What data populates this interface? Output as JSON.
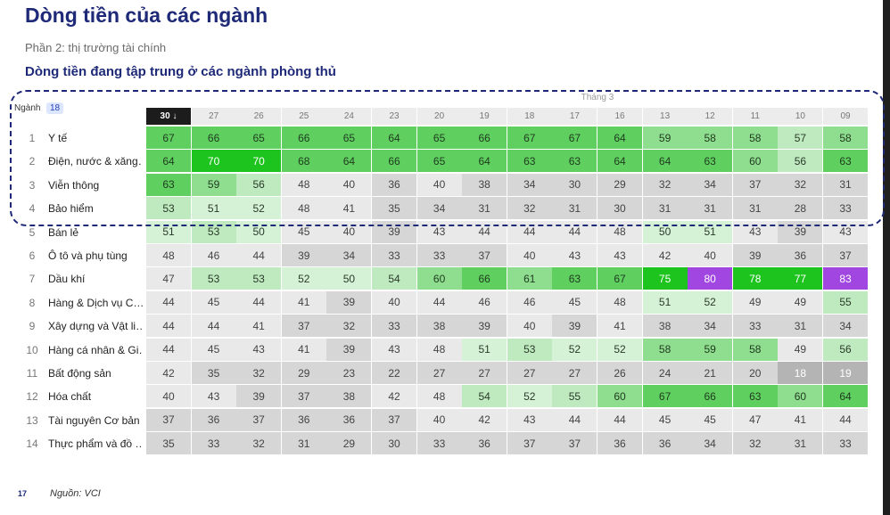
{
  "page": {
    "title": "Dòng tiền của các ngành",
    "subtitle": "Phần 2: thị trường tài chính",
    "heading": "Dòng tiền đang tập trung ở các ngành phòng thủ",
    "page_number": "17",
    "source": "Nguồn: VCI"
  },
  "chart_data": {
    "type": "heatmap",
    "column_group_label": "Tháng 3",
    "row_header": "Ngành",
    "row_count_badge": "18",
    "columns": [
      "30 ↓",
      "27",
      "26",
      "25",
      "24",
      "23",
      "20",
      "19",
      "18",
      "17",
      "16",
      "13",
      "12",
      "11",
      "10",
      "09"
    ],
    "sorted_column": "30 ↓",
    "rows": [
      {
        "rank": "1",
        "name": "Y tế",
        "values": [
          67,
          66,
          65,
          66,
          65,
          64,
          65,
          66,
          67,
          67,
          64,
          59,
          58,
          58,
          57,
          58
        ]
      },
      {
        "rank": "2",
        "name": "Điện, nước & xăng…",
        "values": [
          64,
          70,
          70,
          68,
          64,
          66,
          65,
          64,
          63,
          63,
          64,
          64,
          63,
          60,
          56,
          63
        ]
      },
      {
        "rank": "3",
        "name": "Viễn thông",
        "values": [
          63,
          59,
          56,
          48,
          40,
          36,
          40,
          38,
          34,
          30,
          29,
          32,
          34,
          37,
          32,
          31
        ]
      },
      {
        "rank": "4",
        "name": "Bảo hiểm",
        "values": [
          53,
          51,
          52,
          48,
          41,
          35,
          34,
          31,
          32,
          31,
          30,
          31,
          31,
          31,
          28,
          33
        ]
      },
      {
        "rank": "5",
        "name": "Bán lẻ",
        "values": [
          51,
          53,
          50,
          45,
          40,
          39,
          43,
          44,
          44,
          44,
          48,
          50,
          51,
          43,
          39,
          43
        ]
      },
      {
        "rank": "6",
        "name": "Ô tô và phụ tùng",
        "values": [
          48,
          46,
          44,
          39,
          34,
          33,
          33,
          37,
          40,
          43,
          43,
          42,
          40,
          39,
          36,
          37
        ]
      },
      {
        "rank": "7",
        "name": "Dầu khí",
        "values": [
          47,
          53,
          53,
          52,
          50,
          54,
          60,
          66,
          61,
          63,
          67,
          75,
          80,
          78,
          77,
          83
        ]
      },
      {
        "rank": "8",
        "name": "Hàng & Dịch vụ C…",
        "values": [
          44,
          45,
          44,
          41,
          39,
          40,
          44,
          46,
          46,
          45,
          48,
          51,
          52,
          49,
          49,
          55
        ]
      },
      {
        "rank": "9",
        "name": "Xây dựng và Vật li…",
        "values": [
          44,
          44,
          41,
          37,
          32,
          33,
          38,
          39,
          40,
          39,
          41,
          38,
          34,
          33,
          31,
          34
        ]
      },
      {
        "rank": "10",
        "name": "Hàng cá nhân & Gi…",
        "values": [
          44,
          45,
          43,
          41,
          39,
          43,
          48,
          51,
          53,
          52,
          52,
          58,
          59,
          58,
          49,
          56
        ]
      },
      {
        "rank": "11",
        "name": "Bất động sản",
        "values": [
          42,
          35,
          32,
          29,
          23,
          22,
          27,
          27,
          27,
          27,
          26,
          24,
          21,
          20,
          18,
          19
        ]
      },
      {
        "rank": "12",
        "name": "Hóa chất",
        "values": [
          40,
          43,
          39,
          37,
          38,
          42,
          48,
          54,
          52,
          55,
          60,
          67,
          66,
          63,
          60,
          64
        ]
      },
      {
        "rank": "13",
        "name": "Tài nguyên Cơ bản",
        "values": [
          37,
          36,
          37,
          36,
          36,
          37,
          40,
          42,
          43,
          44,
          44,
          45,
          45,
          47,
          41,
          44
        ]
      },
      {
        "rank": "14",
        "name": "Thực phẩm và đồ …",
        "values": [
          35,
          33,
          32,
          31,
          29,
          30,
          33,
          36,
          37,
          37,
          36,
          36,
          34,
          32,
          31,
          33
        ]
      }
    ],
    "colors": {
      "very_high": "#a146e0",
      "high": "#1ec41e",
      "mid_high": "#5fd05f",
      "mid": "#8fdd8f",
      "mid_low": "#bfeabf",
      "low_green": "#d6f2d6",
      "neutral": "#e9e9ea",
      "low": "#d6d6d7",
      "very_low": "#b4b4b5"
    }
  }
}
